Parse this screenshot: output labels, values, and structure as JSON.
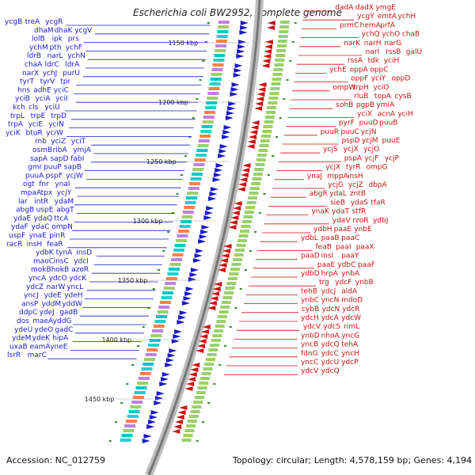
{
  "header": {
    "title": "Escherichia coli BW2952, complete genome"
  },
  "footer": {
    "accession": "Accession: NC_012759",
    "topology": "Topology: circular; Length: 4,578,159 bp; Genes: 4,194"
  },
  "colors": {
    "forward": "#1a1acc",
    "reverse": "#cc1111",
    "backbone": "#888888",
    "tick": "#2e8b2e"
  },
  "kbp_markers": [
    "1150 kbp",
    "1200 kbp",
    "1250 kbp",
    "1300 kbp",
    "1350 kbp",
    "1400 kbp",
    "1450 kbp"
  ],
  "left_labels": [
    "ycgB",
    "treA",
    "ycgR",
    "dhaM",
    "dhaK",
    "ycgV",
    "lolB",
    "ipk",
    "prs",
    "ychM",
    "pth",
    "ychF",
    "ldrB",
    "narL",
    "ychN",
    "chaA",
    "ldrC",
    "ldrA",
    "narX",
    "ychJ",
    "purU",
    "tyrT",
    "tyrV",
    "tpr",
    "hns",
    "adhE",
    "yciC",
    "yciB",
    "yciA",
    "yciI",
    "kch",
    "cls",
    "yciU",
    "trpL",
    "trpE",
    "trpD",
    "trpA",
    "yciE",
    "yciN",
    "yciK",
    "btuR",
    "yciW",
    "rnb",
    "yciZ",
    "yciT",
    "osmB",
    "ribA",
    "ymjA",
    "sapA",
    "sapD",
    "fabI",
    "gmr",
    "puuP",
    "sapB",
    "puuA",
    "pspF",
    "ycjW",
    "ogt",
    "fnr",
    "ynaI",
    "mpaA",
    "tpx",
    "ycjY",
    "lar",
    "intR",
    "ydaM",
    "abgB",
    "uspE",
    "abgT",
    "ydaE",
    "ydaQ",
    "ttcA",
    "ydaF",
    "ydaC",
    "ompN",
    "uspF",
    "ynaE",
    "pinR",
    "racR",
    "insH",
    "feaR",
    "ydbK",
    "tynA",
    "insD",
    "maoC",
    "insC",
    "ydcI",
    "mokB",
    "hokB",
    "azoR",
    "yncA",
    "ydcO",
    "ydcK",
    "ydcZ",
    "narW",
    "yncL",
    "yncJ",
    "ydeE",
    "ydeH",
    "ansP",
    "yddM",
    "yddW",
    "ddpC",
    "ydeJ",
    "gadB",
    "dos",
    "maeA",
    "yddG",
    "ydeU",
    "ydeO",
    "gadC",
    "ydeM",
    "ydeK",
    "hipA",
    "uxaB",
    "eamA",
    "yneE",
    "lsrR",
    "marC"
  ],
  "right_labels": [
    "dadA",
    "dadX",
    "ymgE",
    "ycgY",
    "emtA",
    "ychH",
    "prmC",
    "hemA",
    "prfA",
    "ychQ",
    "ychO",
    "chaB",
    "narK",
    "narH",
    "narG",
    "narI",
    "rssB",
    "galU",
    "rssA",
    "tdk",
    "yciH",
    "ychE",
    "oppA",
    "oppC",
    "oppF",
    "yciY",
    "oppD",
    "ompW",
    "trpH",
    "yciO",
    "rluB",
    "topA",
    "cysB",
    "sohB",
    "pgpB",
    "ymiA",
    "yciX",
    "acnA",
    "yciH",
    "pyrF",
    "puuD",
    "puuB",
    "puuR",
    "puuC",
    "ycjN",
    "pspD",
    "ycjM",
    "puuE",
    "ycjS",
    "ycjX",
    "ycjO",
    "pspA",
    "ycjF",
    "ycjP",
    "ycjX",
    "tyrR",
    "ompG",
    "ynaJ",
    "mppA",
    "insH",
    "ycjG",
    "ycjZ",
    "dbpA",
    "abgR",
    "ydaL",
    "zntB",
    "sieB",
    "ydaS",
    "tfaR",
    "ynaK",
    "ydaT",
    "stfR",
    "ydaV",
    "rzoR",
    "ydbJ",
    "ydbH",
    "paaE",
    "ynbE",
    "ydbL",
    "paaB",
    "paaC",
    "feaB",
    "paaI",
    "paaX",
    "paaD",
    "insI",
    "paaY",
    "paaE",
    "ydbC",
    "paaF",
    "ydbD",
    "hrpA",
    "ynbA",
    "trg",
    "ydcF",
    "ynbB",
    "tehB",
    "ydcJ",
    "aldA",
    "ynbC",
    "yncN",
    "mdoD",
    "cybB",
    "ydcN",
    "ydcR",
    "ydcH",
    "ydcA",
    "ydcW",
    "ydcV",
    "ydcS",
    "rimL",
    "ynbD",
    "nhoA",
    "yncG",
    "yncB",
    "ydcQ",
    "tehA",
    "fdnG",
    "ydcC",
    "yncH",
    "yncC",
    "ydcU",
    "ydcP",
    "ydcV",
    "ydcQ"
  ]
}
